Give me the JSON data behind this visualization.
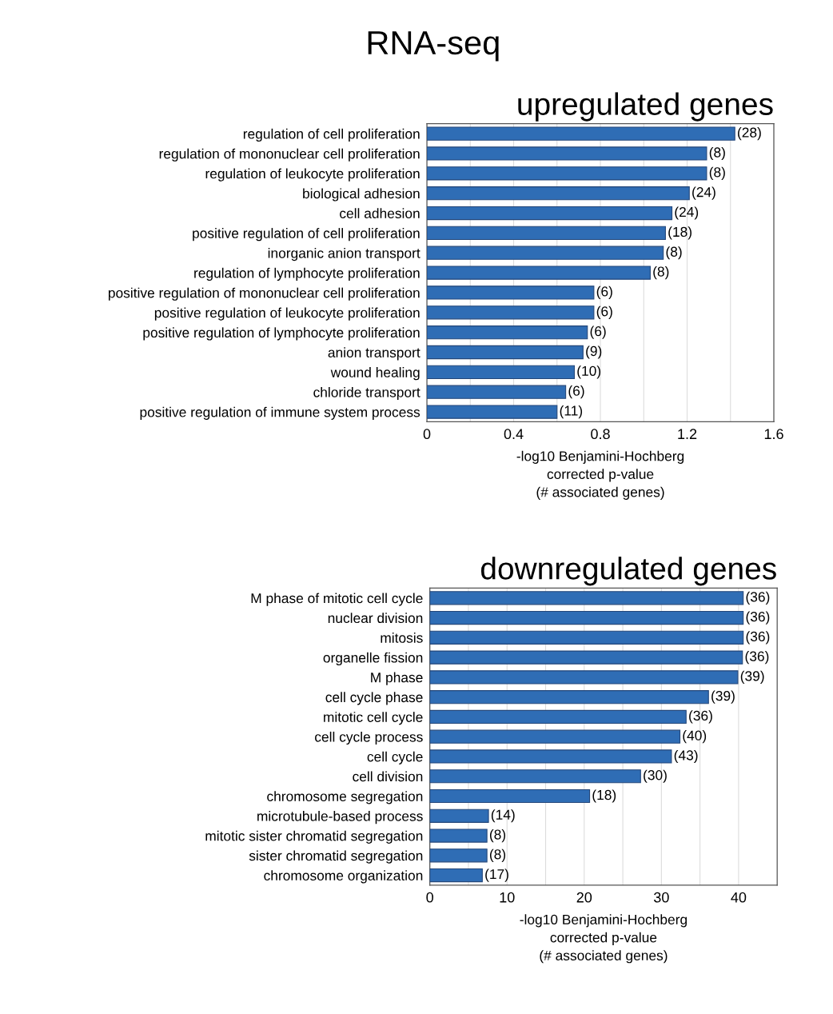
{
  "chart_data": [
    {
      "type": "bar",
      "orientation": "horizontal",
      "title": "upregulated genes",
      "xlabel": "-log10 Benjamini-Hochberg\ncorrected p-value\n(# associated genes)",
      "color": "#2f6db5",
      "grid": "x",
      "categories": [
        "regulation of cell proliferation",
        "regulation of mononuclear cell proliferation",
        "regulation of leukocyte proliferation",
        "biological adhesion",
        "cell adhesion",
        "positive regulation of cell proliferation",
        "inorganic anion transport",
        "regulation of lymphocyte proliferation",
        "positive regulation of mononuclear cell proliferation",
        "positive regulation of leukocyte proliferation",
        "positive regulation of lymphocyte proliferation",
        "anion transport",
        "wound healing",
        "chloride transport",
        "positive regulation of immune system process"
      ],
      "values": [
        1.42,
        1.29,
        1.29,
        1.21,
        1.13,
        1.1,
        1.09,
        1.03,
        0.77,
        0.77,
        0.74,
        0.72,
        0.68,
        0.64,
        0.6
      ],
      "xlim": [
        0,
        1.6
      ],
      "xticks": [
        0,
        {
          "value": 0.2,
          "label": null
        },
        0.4,
        {
          "value": 0.6,
          "label": null
        },
        0.8,
        {
          "value": 1.0,
          "label": null
        },
        1.2,
        {
          "value": 1.4,
          "label": null
        },
        1.6
      ],
      "annotations": [
        "RNA-seq",
        {
          "text": "(28)",
          "x": 1.42,
          "y": "regulation of cell proliferation"
        },
        {
          "text": "(8)",
          "x": 1.29,
          "y": "regulation of mononuclear cell proliferation"
        },
        {
          "text": "(8)",
          "x": 1.29,
          "y": "regulation of leukocyte proliferation"
        },
        {
          "text": "(24)",
          "x": 1.21,
          "y": "biological adhesion"
        },
        {
          "text": "(24)",
          "x": 1.13,
          "y": "cell adhesion"
        },
        {
          "text": "(18)",
          "x": 1.1,
          "y": "positive regulation of cell proliferation"
        },
        {
          "text": "(8)",
          "x": 1.09,
          "y": "inorganic anion transport"
        },
        {
          "text": "(8)",
          "x": 1.03,
          "y": "regulation of lymphocyte proliferation"
        },
        {
          "text": "(6)",
          "x": 0.77,
          "y": "positive regulation of mononuclear cell proliferation"
        },
        {
          "text": "(6)",
          "x": 0.77,
          "y": "positive regulation of leukocyte proliferation"
        },
        {
          "text": "(6)",
          "x": 0.74,
          "y": "positive regulation of lymphocyte proliferation"
        },
        {
          "text": "(9)",
          "x": 0.72,
          "y": "anion transport"
        },
        {
          "text": "(10)",
          "x": 0.68,
          "y": "wound healing"
        },
        {
          "text": "(6)",
          "x": 0.64,
          "y": "chloride transport"
        },
        {
          "text": "(11)",
          "x": 0.6,
          "y": "positive regulation of immune system process"
        }
      ]
    },
    {
      "type": "bar",
      "orientation": "horizontal",
      "title": "downregulated genes",
      "xlabel": "-log10 Benjamini-Hochberg\ncorrected p-value\n(# associated genes)",
      "color": "#2f6db5",
      "grid": "x",
      "categories": [
        "M phase of mitotic cell cycle",
        "nuclear division",
        "mitosis",
        "organelle fission",
        "M phase",
        "cell cycle phase",
        "mitotic cell cycle",
        "cell cycle process",
        "cell cycle",
        "cell division",
        "chromosome segregation",
        "microtubule-based process",
        "mitotic sister chromatid segregation",
        "sister chromatid segregation",
        "chromosome organization"
      ],
      "values": [
        40.6,
        40.6,
        40.6,
        40.5,
        39.9,
        36.1,
        33.2,
        32.4,
        31.3,
        27.3,
        20.7,
        7.6,
        7.4,
        7.4,
        6.8
      ],
      "xlim": [
        0,
        45
      ],
      "xticks": [
        0,
        {
          "value": 5,
          "label": null
        },
        10,
        {
          "value": 15,
          "label": null
        },
        20,
        {
          "value": 25,
          "label": null
        },
        30,
        {
          "value": 35,
          "label": null
        },
        40
      ],
      "annotations": [
        {
          "text": "(36)",
          "x": 40.6,
          "y": "M phase of mitotic cell cycle"
        },
        {
          "text": "(36)",
          "x": 40.6,
          "y": "nuclear division"
        },
        {
          "text": "(36)",
          "x": 40.6,
          "y": "mitosis"
        },
        {
          "text": "(36)",
          "x": 40.5,
          "y": "organelle fission"
        },
        {
          "text": "(39)",
          "x": 39.9,
          "y": "M phase"
        },
        {
          "text": "(39)",
          "x": 36.1,
          "y": "cell cycle phase"
        },
        {
          "text": "(36)",
          "x": 33.2,
          "y": "mitotic cell cycle"
        },
        {
          "text": "(40)",
          "x": 32.4,
          "y": "cell cycle process"
        },
        {
          "text": "(43)",
          "x": 31.3,
          "y": "cell cycle"
        },
        {
          "text": "(30)",
          "x": 27.3,
          "y": "cell division"
        },
        {
          "text": "(18)",
          "x": 20.7,
          "y": "chromosome segregation"
        },
        {
          "text": "(14)",
          "x": 7.6,
          "y": "microtubule-based process"
        },
        {
          "text": "(8)",
          "x": 7.4,
          "y": "mitotic sister chromatid segregation"
        },
        {
          "text": "(8)",
          "x": 7.4,
          "y": "sister chromatid segregation"
        },
        {
          "text": "(17)",
          "x": 6.8,
          "y": "chromosome organization"
        }
      ]
    }
  ]
}
